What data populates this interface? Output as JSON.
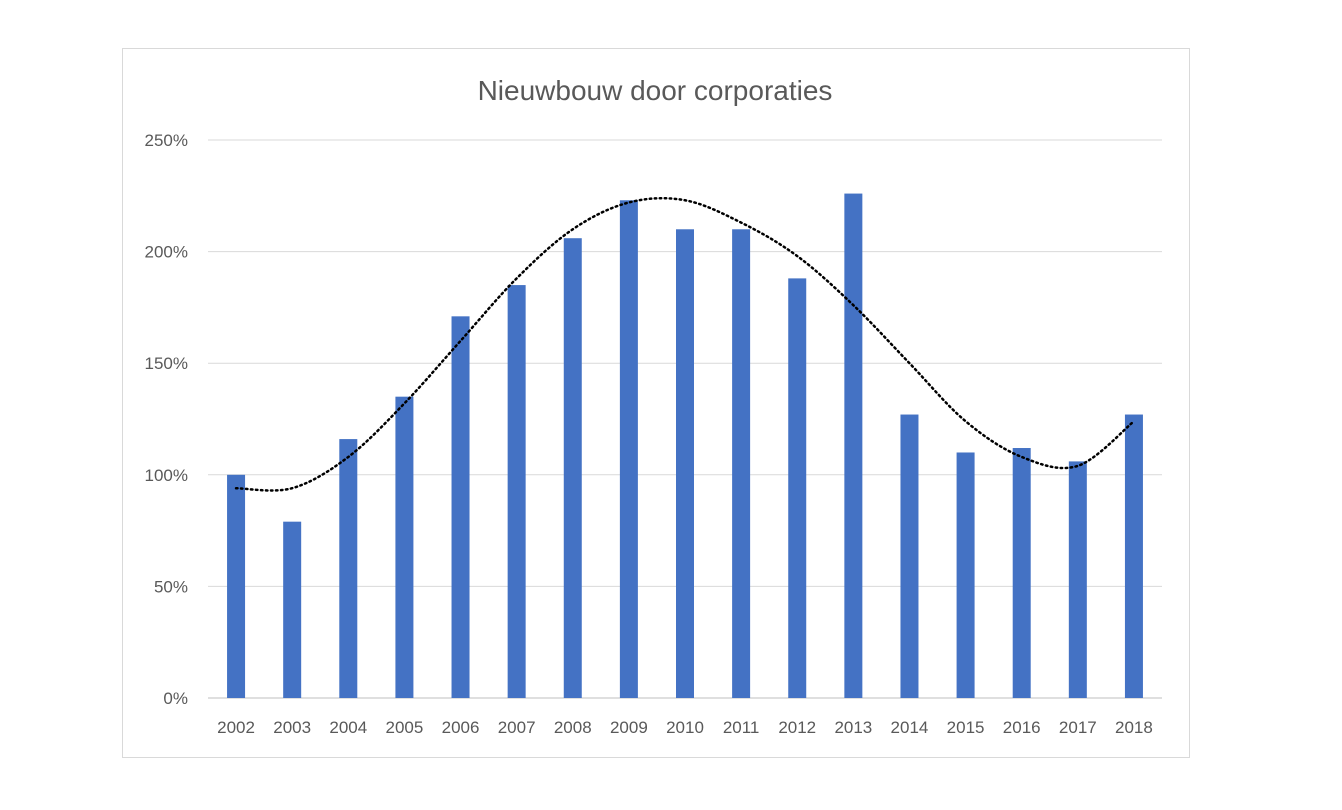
{
  "chart_data": {
    "type": "bar",
    "title": "Nieuwbouw door corporaties",
    "xlabel": "",
    "ylabel": "",
    "categories": [
      "2002",
      "2003",
      "2004",
      "2005",
      "2006",
      "2007",
      "2008",
      "2009",
      "2010",
      "2011",
      "2012",
      "2013",
      "2014",
      "2015",
      "2016",
      "2017",
      "2018"
    ],
    "values": [
      100,
      79,
      116,
      135,
      171,
      185,
      206,
      223,
      210,
      210,
      188,
      226,
      127,
      110,
      112,
      106,
      127
    ],
    "ylim": [
      0,
      250
    ],
    "yticks": [
      0,
      50,
      100,
      150,
      200,
      250
    ],
    "ytick_labels": [
      "0%",
      "50%",
      "100%",
      "150%",
      "200%",
      "250%"
    ],
    "grid": true,
    "bar_color": "#4472c4",
    "trendline": {
      "type": "polynomial",
      "style": "dotted",
      "color": "#000000",
      "values": [
        94,
        94,
        108,
        132,
        160,
        188,
        210,
        222,
        223,
        213,
        198,
        176,
        150,
        124,
        108,
        104,
        124
      ]
    }
  }
}
